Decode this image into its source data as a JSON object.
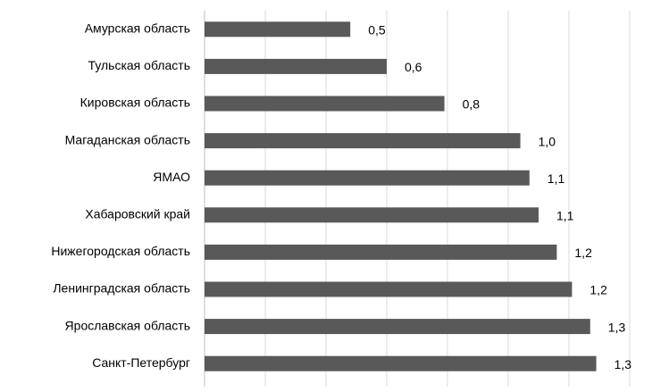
{
  "chart_data": {
    "type": "bar",
    "orientation": "horizontal",
    "categories": [
      "Амурская область",
      "Тульская область",
      "Кировская область",
      "Магаданская область",
      "ЯМАО",
      "Хабаровский край",
      "Нижегородская область",
      "Ленинградская область",
      "Ярославская область",
      "Санкт-Петербург"
    ],
    "values": [
      0.48,
      0.6,
      0.79,
      1.04,
      1.07,
      1.1,
      1.16,
      1.21,
      1.27,
      1.29
    ],
    "value_labels": [
      "0,5",
      "0,6",
      "0,8",
      "1,0",
      "1,1",
      "1,1",
      "1,2",
      "1,2",
      "1,3",
      "1,3"
    ],
    "color": "#595959",
    "xlim": [
      0,
      1.4
    ],
    "xticks": [
      0,
      0.2,
      0.4,
      0.6,
      0.8,
      1.0,
      1.2,
      1.4
    ],
    "grid": true
  }
}
